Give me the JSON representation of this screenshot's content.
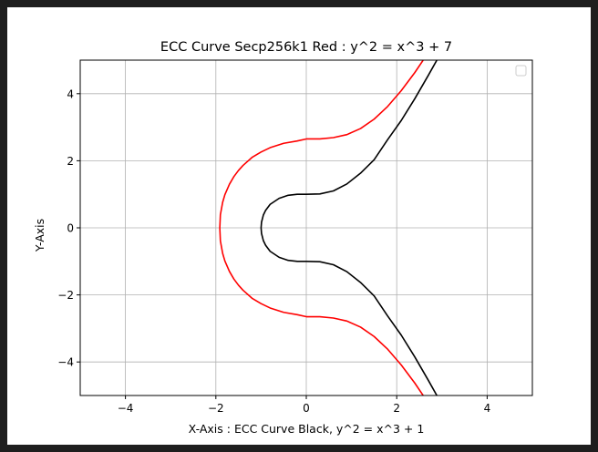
{
  "chart_data": {
    "type": "line",
    "title": "ECC Curve Secp256k1 Red : y^2 = x^3 + 7",
    "xlabel": "X-Axis : ECC Curve Black,  y^2 = x^3 + 1",
    "ylabel": "Y-Axis",
    "xlim": [
      -5,
      5
    ],
    "ylim": [
      -5,
      5
    ],
    "xticks": [
      -4,
      -2,
      0,
      2,
      4
    ],
    "yticks": [
      -4,
      -2,
      0,
      2,
      4
    ],
    "xtick_labels": [
      "−4",
      "−2",
      "0",
      "2",
      "4"
    ],
    "ytick_labels": [
      "−4",
      "−2",
      "0",
      "2",
      "4"
    ],
    "grid": true,
    "legend": {
      "placement": "top-right",
      "entries": []
    },
    "series": [
      {
        "color": "#ff0000",
        "equation_b": 7,
        "x": [
          -1.913,
          -1.9,
          -1.85,
          -1.8,
          -1.7,
          -1.6,
          -1.5,
          -1.4,
          -1.2,
          -1.0,
          -0.8,
          -0.5,
          -0.2,
          0,
          0.3,
          0.6,
          0.9,
          1.2,
          1.5,
          1.8,
          2.1,
          2.4,
          2.6
        ],
        "y_upper": [
          0,
          0.39,
          0.76,
          0.99,
          1.3,
          1.53,
          1.71,
          1.86,
          2.1,
          2.26,
          2.39,
          2.52,
          2.59,
          2.65,
          2.65,
          2.69,
          2.78,
          2.96,
          3.24,
          3.62,
          4.09,
          4.63,
          5.03
        ]
      },
      {
        "color": "#000000",
        "equation_b": 1,
        "x": [
          -1.0,
          -0.99,
          -0.95,
          -0.9,
          -0.8,
          -0.6,
          -0.4,
          -0.2,
          0,
          0.3,
          0.6,
          0.9,
          1.2,
          1.5,
          1.8,
          2.1,
          2.4,
          2.7,
          2.9
        ],
        "y_upper": [
          0,
          0.17,
          0.38,
          0.52,
          0.7,
          0.88,
          0.97,
          1.0,
          1.0,
          1.01,
          1.1,
          1.31,
          1.63,
          2.03,
          2.63,
          3.2,
          3.85,
          4.55,
          5.03
        ]
      }
    ]
  }
}
